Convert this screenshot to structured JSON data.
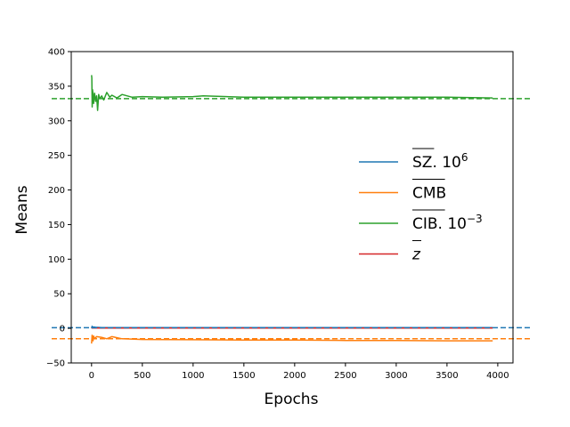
{
  "chart_data": {
    "type": "line",
    "xlabel": "Epochs",
    "ylabel": "Means",
    "xlim": [
      -200,
      4150
    ],
    "ylim": [
      -50,
      400
    ],
    "xticks": [
      0,
      500,
      1000,
      1500,
      2000,
      2500,
      3000,
      3500,
      4000
    ],
    "yticks": [
      -50,
      0,
      50,
      100,
      150,
      200,
      250,
      300,
      350,
      400
    ],
    "grid": false,
    "legend_position": "center-right",
    "series": [
      {
        "name": "SZ.10^6",
        "legend_main": "SZ",
        "legend_suffix": ". 10",
        "legend_sup": "6",
        "color": "#1f77b4",
        "reference_line": 1,
        "x": [
          0,
          5,
          10,
          20,
          40,
          100,
          300,
          1000,
          2000,
          3000,
          3950
        ],
        "y": [
          0,
          3,
          2,
          2,
          1.5,
          1.2,
          1.0,
          1.0,
          1.0,
          1.0,
          1.0
        ]
      },
      {
        "name": "CMB",
        "legend_main": "CMB",
        "legend_suffix": "",
        "legend_sup": "",
        "color": "#ff7f0e",
        "reference_line": -15,
        "x": [
          0,
          5,
          10,
          15,
          20,
          30,
          50,
          100,
          150,
          200,
          300,
          500,
          1000,
          1500,
          2000,
          2500,
          3000,
          3500,
          3950
        ],
        "y": [
          -22,
          -10,
          -14,
          -18,
          -11,
          -15,
          -12,
          -13,
          -15,
          -12,
          -15,
          -16,
          -16.5,
          -17,
          -17,
          -17.5,
          -17.5,
          -18,
          -18
        ]
      },
      {
        "name": "CIB.10^-3",
        "legend_main": "CIB",
        "legend_suffix": ". 10",
        "legend_sup": "−3",
        "color": "#2ca02c",
        "reference_line": 332,
        "x": [
          0,
          3,
          6,
          10,
          15,
          20,
          30,
          40,
          50,
          60,
          70,
          80,
          100,
          120,
          150,
          180,
          200,
          250,
          300,
          400,
          500,
          700,
          1000,
          1100,
          1500,
          2000,
          2500,
          3000,
          3500,
          3950
        ],
        "y": [
          366,
          362,
          320,
          345,
          338,
          325,
          340,
          328,
          336,
          315,
          338,
          332,
          336,
          330,
          341,
          334,
          337,
          333,
          338,
          334,
          335,
          334,
          335,
          336,
          334,
          334,
          334,
          334,
          334,
          333
        ]
      },
      {
        "name": "z",
        "legend_main": "z",
        "legend_suffix": "",
        "legend_sup": "",
        "color": "#d62728",
        "reference_line": null,
        "x": [
          0,
          1000,
          2000,
          3000,
          3950
        ],
        "y": [
          0.5,
          0.5,
          0.5,
          0.5,
          0.5
        ]
      }
    ]
  }
}
